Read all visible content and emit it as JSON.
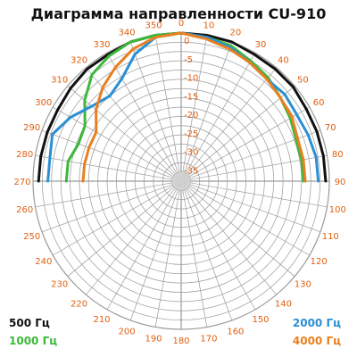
{
  "title": "Диаграмма направленности CU-910",
  "colors": {
    "grid": "#9a9a9a",
    "angle_label": "#e06010",
    "radial_label": "#e06010",
    "center": "#cfcfcf"
  },
  "chart_data": {
    "type": "polar-line",
    "title": "Диаграмма направленности CU-910",
    "angle_ticks": [
      0,
      10,
      20,
      30,
      40,
      50,
      60,
      70,
      80,
      90,
      100,
      110,
      120,
      130,
      140,
      150,
      160,
      170,
      180,
      190,
      200,
      210,
      220,
      230,
      240,
      250,
      260,
      270,
      280,
      290,
      300,
      310,
      320,
      330,
      340,
      350
    ],
    "angle_tick_labels": [
      "0",
      "10",
      "20",
      "30",
      "40",
      "50",
      "60",
      "70",
      "80",
      "90",
      "100",
      "110",
      "120",
      "130",
      "140",
      "150",
      "160",
      "170",
      "180",
      "190",
      "200",
      "210",
      "220",
      "230",
      "240",
      "250",
      "260",
      "270",
      "280",
      "290",
      "300",
      "310",
      "320",
      "330",
      "340",
      "350"
    ],
    "radial_ticks": [
      0,
      -5,
      -10,
      -15,
      -20,
      -25,
      -30,
      -35
    ],
    "radial_tick_labels": [
      "0",
      "-5",
      "-10",
      "-15",
      "-20",
      "-25",
      "-30",
      "-35"
    ],
    "radial_range": [
      -40,
      0
    ],
    "grid": true,
    "legend_placement": "bottom corners",
    "series": [
      {
        "name": "500 Гц",
        "color": "#111111",
        "points": [
          [
            -90,
            -1.5
          ],
          [
            -80,
            -1.5
          ],
          [
            -70,
            -1.5
          ],
          [
            -60,
            -1.5
          ],
          [
            -50,
            -1.0
          ],
          [
            -40,
            -0.5
          ],
          [
            -30,
            -0.5
          ],
          [
            -20,
            0
          ],
          [
            -10,
            0
          ],
          [
            0,
            0
          ],
          [
            10,
            0
          ],
          [
            20,
            0
          ],
          [
            30,
            -0.5
          ],
          [
            40,
            -0.5
          ],
          [
            50,
            -0.5
          ],
          [
            60,
            -1.0
          ],
          [
            70,
            -1.0
          ],
          [
            80,
            -1.0
          ],
          [
            90,
            -1.0
          ]
        ]
      },
      {
        "name": "1000 Гц",
        "color": "#3cb83a",
        "points": [
          [
            -90,
            -9.0
          ],
          [
            -80,
            -9.0
          ],
          [
            -70,
            -10.5
          ],
          [
            -60,
            -10.0
          ],
          [
            -50,
            -6.0
          ],
          [
            -40,
            -2.5
          ],
          [
            -30,
            -1.0
          ],
          [
            -20,
            0
          ],
          [
            -10,
            0
          ],
          [
            0,
            0
          ],
          [
            10,
            -0.5
          ],
          [
            20,
            -1.0
          ],
          [
            30,
            -2.5
          ],
          [
            40,
            -3.5
          ],
          [
            50,
            -5.0
          ],
          [
            60,
            -6.0
          ],
          [
            70,
            -7.0
          ],
          [
            80,
            -7.0
          ],
          [
            90,
            -7.0
          ]
        ]
      },
      {
        "name": "2000 Гц",
        "color": "#2a8fd4",
        "points": [
          [
            -90,
            -4.0
          ],
          [
            -80,
            -4.0
          ],
          [
            -70,
            -3.0
          ],
          [
            -60,
            -5.5
          ],
          [
            -50,
            -8.5
          ],
          [
            -40,
            -10.0
          ],
          [
            -30,
            -8.0
          ],
          [
            -20,
            -3.5
          ],
          [
            -10,
            -0.5
          ],
          [
            0,
            0
          ],
          [
            10,
            -0.5
          ],
          [
            20,
            -1.5
          ],
          [
            30,
            -3.0
          ],
          [
            40,
            -4.0
          ],
          [
            50,
            -3.5
          ],
          [
            60,
            -4.0
          ],
          [
            70,
            -3.5
          ],
          [
            80,
            -3.0
          ],
          [
            90,
            -3.0
          ]
        ]
      },
      {
        "name": "4000 Гц",
        "color": "#e88020",
        "points": [
          [
            -90,
            -13.5
          ],
          [
            -80,
            -13.5
          ],
          [
            -70,
            -13.5
          ],
          [
            -60,
            -13.5
          ],
          [
            -50,
            -10.0
          ],
          [
            -40,
            -7.0
          ],
          [
            -30,
            -4.5
          ],
          [
            -20,
            -2.0
          ],
          [
            -10,
            -0.5
          ],
          [
            0,
            0
          ],
          [
            10,
            -1.0
          ],
          [
            20,
            -2.0
          ],
          [
            30,
            -3.0
          ],
          [
            40,
            -4.0
          ],
          [
            50,
            -5.0
          ],
          [
            60,
            -5.5
          ],
          [
            70,
            -6.5
          ],
          [
            80,
            -6.5
          ],
          [
            90,
            -6.5
          ]
        ]
      }
    ]
  },
  "legend": [
    {
      "label": "500 Гц",
      "color": "#111111"
    },
    {
      "label": "1000 Гц",
      "color": "#3cb83a"
    },
    {
      "label": "2000 Гц",
      "color": "#2a8fd4"
    },
    {
      "label": "4000 Гц",
      "color": "#e88020"
    }
  ]
}
